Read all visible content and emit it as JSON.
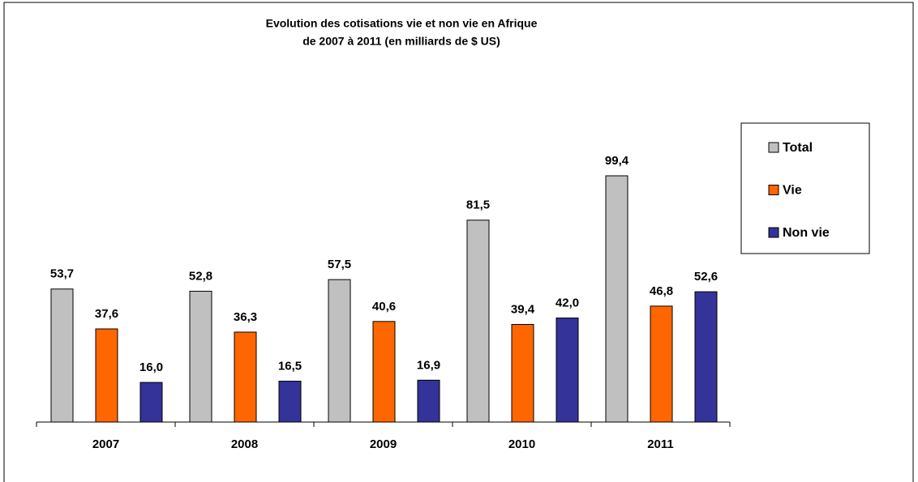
{
  "chart_data": {
    "type": "bar",
    "title": [
      "Evolution des cotisations  vie et non vie en Afrique",
      "de 2007  à 2011 (en milliards de $ US)"
    ],
    "categories": [
      "2007",
      "2008",
      "2009",
      "2010",
      "2011"
    ],
    "series": [
      {
        "name": "Total",
        "color": "#c0c0c0",
        "values": [
          53.7,
          52.8,
          57.5,
          81.5,
          99.4
        ],
        "value_labels": [
          "53,7",
          "52,8",
          "57,5",
          "81,5",
          "99,4"
        ]
      },
      {
        "name": "Vie",
        "color": "#ff6600",
        "values": [
          37.6,
          36.3,
          40.6,
          39.4,
          46.8
        ],
        "value_labels": [
          "37,6",
          "36,3",
          "40,6",
          "39,4",
          "46,8"
        ]
      },
      {
        "name": "Non vie",
        "color": "#333399",
        "values": [
          16.0,
          16.5,
          16.9,
          42.0,
          52.6
        ],
        "value_labels": [
          "16,0",
          "16,5",
          "16,9",
          "42,0",
          "52,6"
        ]
      }
    ],
    "legend": "right"
  }
}
